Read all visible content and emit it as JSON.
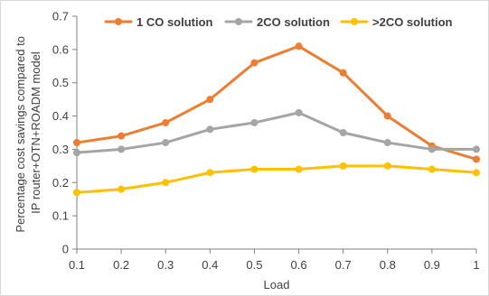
{
  "chart_data": {
    "type": "line",
    "xlabel": "Load",
    "ylabel_lines": [
      "Percentage cost savings compared to",
      "IP router+OTN+ROADM model"
    ],
    "x": [
      0.1,
      0.2,
      0.3,
      0.4,
      0.5,
      0.6,
      0.7,
      0.8,
      0.9,
      1
    ],
    "x_tick_labels": [
      "0.1",
      "0.2",
      "0.3",
      "0.4",
      "0.5",
      "0.6",
      "0.7",
      "0.8",
      "0.9",
      "1"
    ],
    "ylim": [
      0,
      0.7
    ],
    "y_ticks": [
      0,
      0.1,
      0.2,
      0.3,
      0.4,
      0.5,
      0.6,
      0.7
    ],
    "y_tick_labels": [
      "0",
      "0.1",
      "0.2",
      "0.3",
      "0.4",
      "0.5",
      "0.6",
      "0.7"
    ],
    "grid": false,
    "legend_position": "top",
    "series": [
      {
        "name": "1 CO solution",
        "color": "#ED7D31",
        "values": [
          0.32,
          0.34,
          0.38,
          0.45,
          0.56,
          0.61,
          0.53,
          0.4,
          0.31,
          0.27
        ]
      },
      {
        "name": "2CO solution",
        "color": "#A5A5A5",
        "values": [
          0.29,
          0.3,
          0.32,
          0.36,
          0.38,
          0.41,
          0.35,
          0.32,
          0.3,
          0.3
        ]
      },
      {
        "name": ">2CO solution",
        "color": "#FFC000",
        "values": [
          0.17,
          0.18,
          0.2,
          0.23,
          0.24,
          0.24,
          0.25,
          0.25,
          0.24,
          0.23
        ]
      }
    ]
  }
}
